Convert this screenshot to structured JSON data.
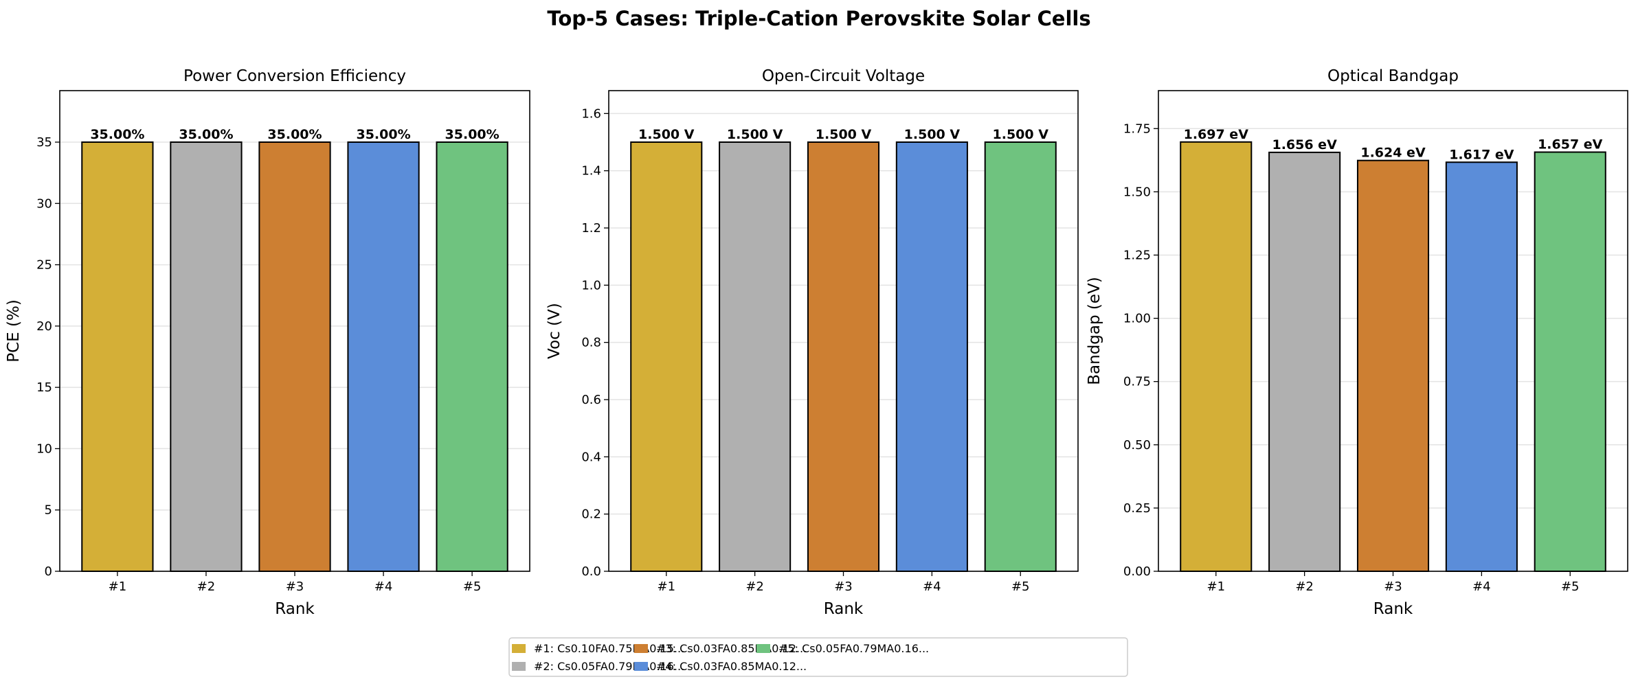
{
  "title": "Top-5 Cases: Triple-Cation Perovskite Solar Cells",
  "colors": [
    "#d4af37",
    "#b0b0b0",
    "#cd7f32",
    "#5b8dd9",
    "#6fc37f"
  ],
  "legend": {
    "placement": "bottom-center",
    "entries": [
      "#1: Cs0.10FA0.75MA0.15...",
      "#2: Cs0.05FA0.79MA0.16...",
      "#3: Cs0.03FA0.85MA0.12...",
      "#4: Cs0.03FA0.85MA0.12...",
      "#5: Cs0.05FA0.79MA0.16..."
    ]
  },
  "chart_data": [
    {
      "type": "bar",
      "title": "Power Conversion Efficiency",
      "xlabel": "Rank",
      "ylabel": "PCE (%)",
      "categories": [
        "#1",
        "#2",
        "#3",
        "#4",
        "#5"
      ],
      "values": [
        35.0,
        35.0,
        35.0,
        35.0,
        35.0
      ],
      "data_labels": [
        "35.00%",
        "35.00%",
        "35.00%",
        "35.00%",
        "35.00%"
      ],
      "ylim": [
        0,
        39.2
      ],
      "yticks": [
        0,
        5,
        10,
        15,
        20,
        25,
        30,
        35
      ],
      "ytick_labels": [
        "0",
        "5",
        "10",
        "15",
        "20",
        "25",
        "30",
        "35"
      ],
      "grid": "y"
    },
    {
      "type": "bar",
      "title": "Open-Circuit Voltage",
      "xlabel": "Rank",
      "ylabel": "Voc (V)",
      "categories": [
        "#1",
        "#2",
        "#3",
        "#4",
        "#5"
      ],
      "values": [
        1.5,
        1.5,
        1.5,
        1.5,
        1.5
      ],
      "data_labels": [
        "1.500 V",
        "1.500 V",
        "1.500 V",
        "1.500 V",
        "1.500 V"
      ],
      "ylim": [
        0,
        1.68
      ],
      "yticks": [
        0,
        0.2,
        0.4,
        0.6,
        0.8,
        1.0,
        1.2,
        1.4,
        1.6
      ],
      "ytick_labels": [
        "0.0",
        "0.2",
        "0.4",
        "0.6",
        "0.8",
        "1.0",
        "1.2",
        "1.4",
        "1.6"
      ],
      "grid": "y"
    },
    {
      "type": "bar",
      "title": "Optical Bandgap",
      "xlabel": "Rank",
      "ylabel": "Bandgap (eV)",
      "categories": [
        "#1",
        "#2",
        "#3",
        "#4",
        "#5"
      ],
      "values": [
        1.697,
        1.656,
        1.624,
        1.617,
        1.657
      ],
      "data_labels": [
        "1.697 eV",
        "1.656 eV",
        "1.624 eV",
        "1.617 eV",
        "1.657 eV"
      ],
      "ylim": [
        0,
        1.9
      ],
      "yticks": [
        0,
        0.25,
        0.5,
        0.75,
        1.0,
        1.25,
        1.5,
        1.75
      ],
      "ytick_labels": [
        "0.00",
        "0.25",
        "0.50",
        "0.75",
        "1.00",
        "1.25",
        "1.50",
        "1.75"
      ],
      "grid": "y"
    }
  ]
}
